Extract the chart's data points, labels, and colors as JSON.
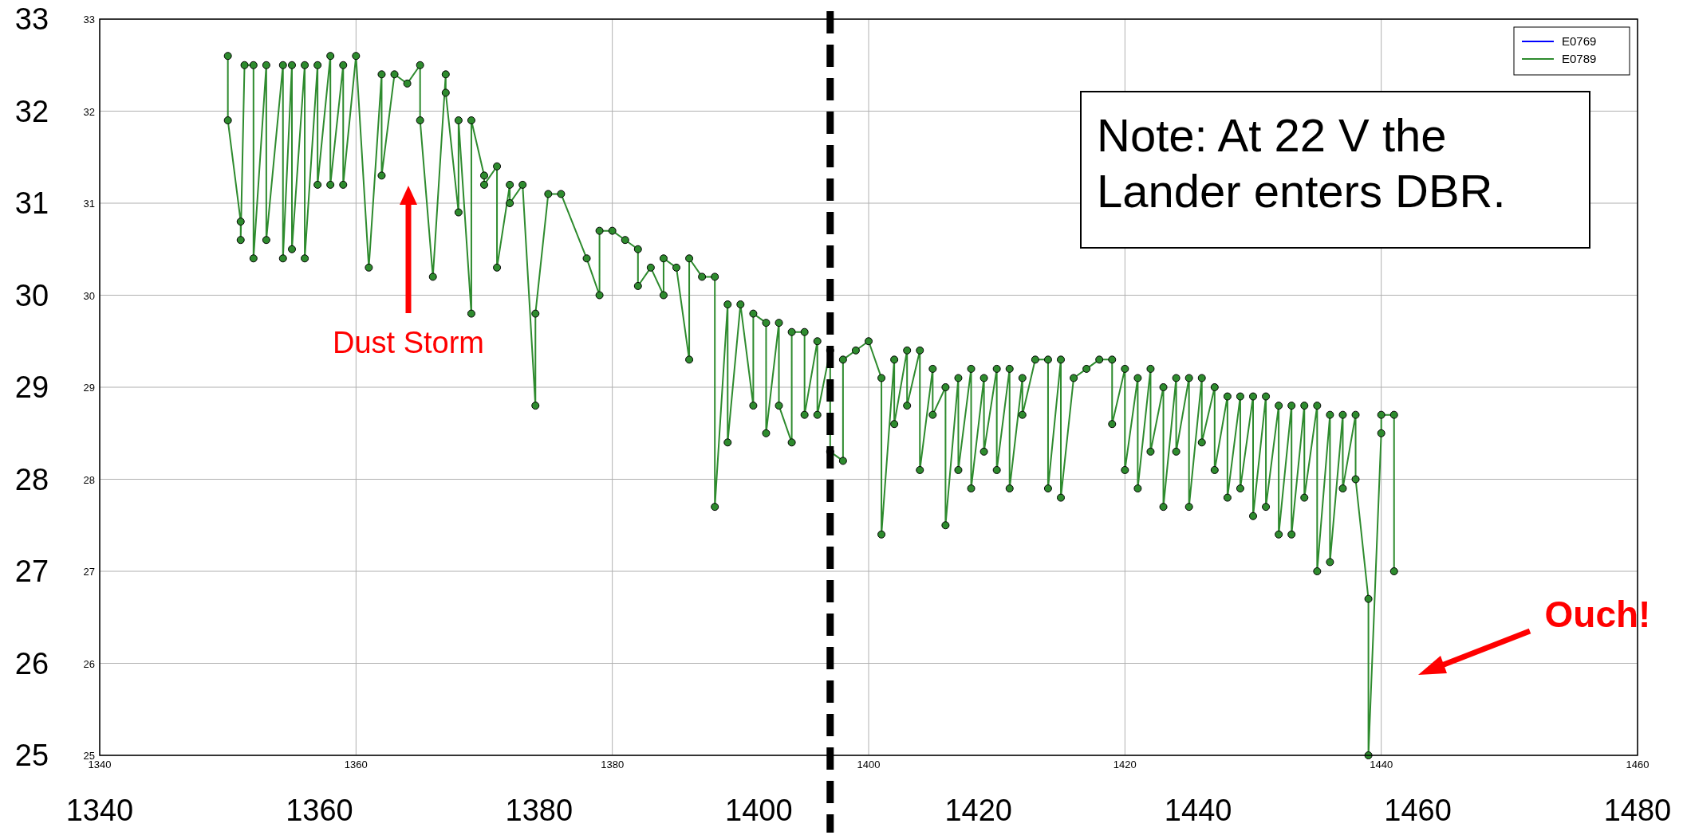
{
  "chart_data": {
    "type": "line",
    "xlim": [
      1340,
      1460
    ],
    "xticks": [
      1340,
      1360,
      1380,
      1400,
      1420,
      1440,
      1460
    ],
    "x2lim": [
      1340,
      1480
    ],
    "x2ticks": [
      1340,
      1360,
      1380,
      1400,
      1420,
      1440,
      1460,
      1480
    ],
    "ylim": [
      25,
      33
    ],
    "yticks": [
      25,
      26,
      27,
      28,
      29,
      30,
      31,
      32,
      33
    ],
    "y2lim": [
      25,
      33
    ],
    "y2ticks": [
      25,
      26,
      27,
      28,
      29,
      30,
      31,
      32,
      33
    ],
    "grid": true,
    "legend": "top right",
    "marker": "circle",
    "line_style": "solid",
    "series": [
      {
        "name": "E0769",
        "color": "#0000ff"
      },
      {
        "name": "E0789",
        "color": "#2e8b2e",
        "x": [
          1350,
          1350,
          1351,
          1351,
          1351.3,
          1352,
          1352,
          1353,
          1353,
          1354.3,
          1354.3,
          1355,
          1355,
          1356,
          1356,
          1357,
          1357,
          1358,
          1358,
          1359,
          1359,
          1360,
          1361,
          1362,
          1362,
          1363,
          1364,
          1365,
          1365,
          1366,
          1367,
          1367,
          1368,
          1368,
          1369,
          1369,
          1370,
          1370,
          1371,
          1371,
          1372,
          1372,
          1373,
          1374,
          1374,
          1375,
          1376,
          1378,
          1379,
          1379,
          1380,
          1381,
          1382,
          1382,
          1383,
          1384,
          1384,
          1385,
          1386,
          1386,
          1387,
          1388,
          1388,
          1389,
          1389,
          1390,
          1391,
          1391,
          1392,
          1392,
          1393,
          1393,
          1394,
          1394,
          1395,
          1395,
          1396,
          1396,
          1397,
          1397,
          1398,
          1398,
          1399,
          1400,
          1401,
          1401,
          1402,
          1402,
          1403,
          1403,
          1404,
          1404,
          1405,
          1405,
          1406,
          1406,
          1407,
          1407,
          1408,
          1408,
          1409,
          1409,
          1410,
          1410,
          1411,
          1411,
          1412,
          1412,
          1413,
          1414,
          1414,
          1415,
          1415,
          1416,
          1417,
          1418,
          1419,
          1419,
          1420,
          1420,
          1421,
          1421,
          1422,
          1422,
          1423,
          1423,
          1424,
          1424,
          1425,
          1425,
          1426,
          1426,
          1427,
          1427,
          1428,
          1428,
          1429,
          1429,
          1430,
          1430,
          1431,
          1431,
          1432,
          1432,
          1433,
          1433,
          1434,
          1434,
          1435,
          1435,
          1436,
          1436,
          1437,
          1437,
          1438,
          1438,
          1439,
          1439,
          1440,
          1440,
          1441,
          1441
        ],
        "values": [
          32.6,
          31.9,
          30.8,
          30.6,
          32.5,
          32.5,
          30.4,
          32.5,
          30.6,
          32.5,
          30.4,
          32.5,
          30.5,
          32.5,
          30.4,
          32.5,
          31.2,
          32.6,
          31.2,
          32.5,
          31.2,
          32.6,
          30.3,
          32.4,
          31.3,
          32.4,
          32.3,
          32.5,
          31.9,
          30.2,
          32.4,
          32.2,
          30.9,
          31.9,
          29.8,
          31.9,
          31.3,
          31.2,
          31.4,
          30.3,
          31.2,
          31.0,
          31.2,
          28.8,
          29.8,
          31.1,
          31.1,
          30.4,
          30.0,
          30.7,
          30.7,
          30.6,
          30.5,
          30.1,
          30.3,
          30.0,
          30.4,
          30.3,
          29.3,
          30.4,
          30.2,
          30.2,
          27.7,
          29.9,
          28.4,
          29.9,
          28.8,
          29.8,
          29.7,
          28.5,
          29.7,
          28.8,
          28.4,
          29.6,
          29.6,
          28.7,
          29.5,
          28.7,
          29.4,
          28.3,
          28.2,
          29.3,
          29.4,
          29.5,
          29.1,
          27.4,
          29.3,
          28.6,
          29.4,
          28.8,
          29.4,
          28.1,
          29.2,
          28.7,
          29.0,
          27.5,
          29.1,
          28.1,
          29.2,
          27.9,
          29.1,
          28.3,
          29.2,
          28.1,
          29.2,
          27.9,
          29.1,
          28.7,
          29.3,
          29.3,
          27.9,
          29.3,
          27.8,
          29.1,
          29.2,
          29.3,
          29.3,
          28.6,
          29.2,
          28.1,
          29.1,
          27.9,
          29.2,
          28.3,
          29.0,
          27.7,
          29.1,
          28.3,
          29.1,
          27.7,
          29.1,
          28.4,
          29.0,
          28.1,
          28.9,
          27.8,
          28.9,
          27.9,
          28.9,
          27.6,
          28.9,
          27.7,
          28.8,
          27.4,
          28.8,
          27.4,
          28.8,
          27.8,
          28.8,
          27.0,
          28.7,
          27.1,
          28.7,
          27.9,
          28.7,
          28.0,
          26.7,
          25.0,
          28.5,
          28.7,
          28.7,
          27.0
        ]
      }
    ],
    "ref_lines": [
      {
        "axis": "x",
        "value": 1397,
        "color": "#000000",
        "line_style": "dashed"
      }
    ],
    "annotations": [
      "Note: At 22 V the Lander enters DBR.",
      "Dust Storm",
      "Ouch!"
    ]
  }
}
